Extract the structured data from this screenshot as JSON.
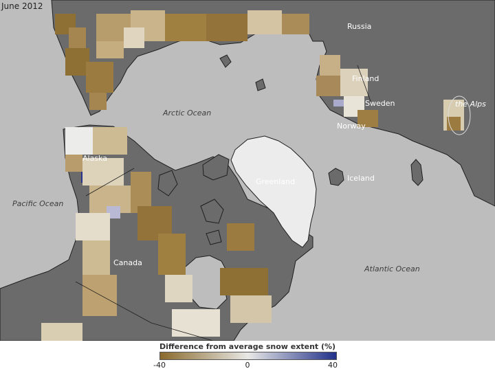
{
  "title": "June 2012",
  "map_labels": {
    "russia": "Russia",
    "finland": "Finland",
    "sweden": "Sweden",
    "norway": "Norway",
    "alps": "the Alps",
    "arctic_ocean": "Arctic Ocean",
    "alaska": "Alaska",
    "greenland": "Greenland",
    "iceland": "Iceland",
    "pacific_ocean": "Pacific Ocean",
    "canada": "Canada",
    "atlantic_ocean": "Atlantic Ocean"
  },
  "legend": {
    "title": "Difference from average snow extent (%)",
    "ticks": [
      "-40",
      "0",
      "40"
    ],
    "colors": {
      "low": "#8a6a2c",
      "mid": "#e8e8e6",
      "high": "#22318a"
    }
  },
  "colors": {
    "ocean": "#bdbdbd",
    "land_no_data": "#6b6b6b",
    "greenland_ice": "#ececec",
    "coast": "#1e1e1e"
  }
}
